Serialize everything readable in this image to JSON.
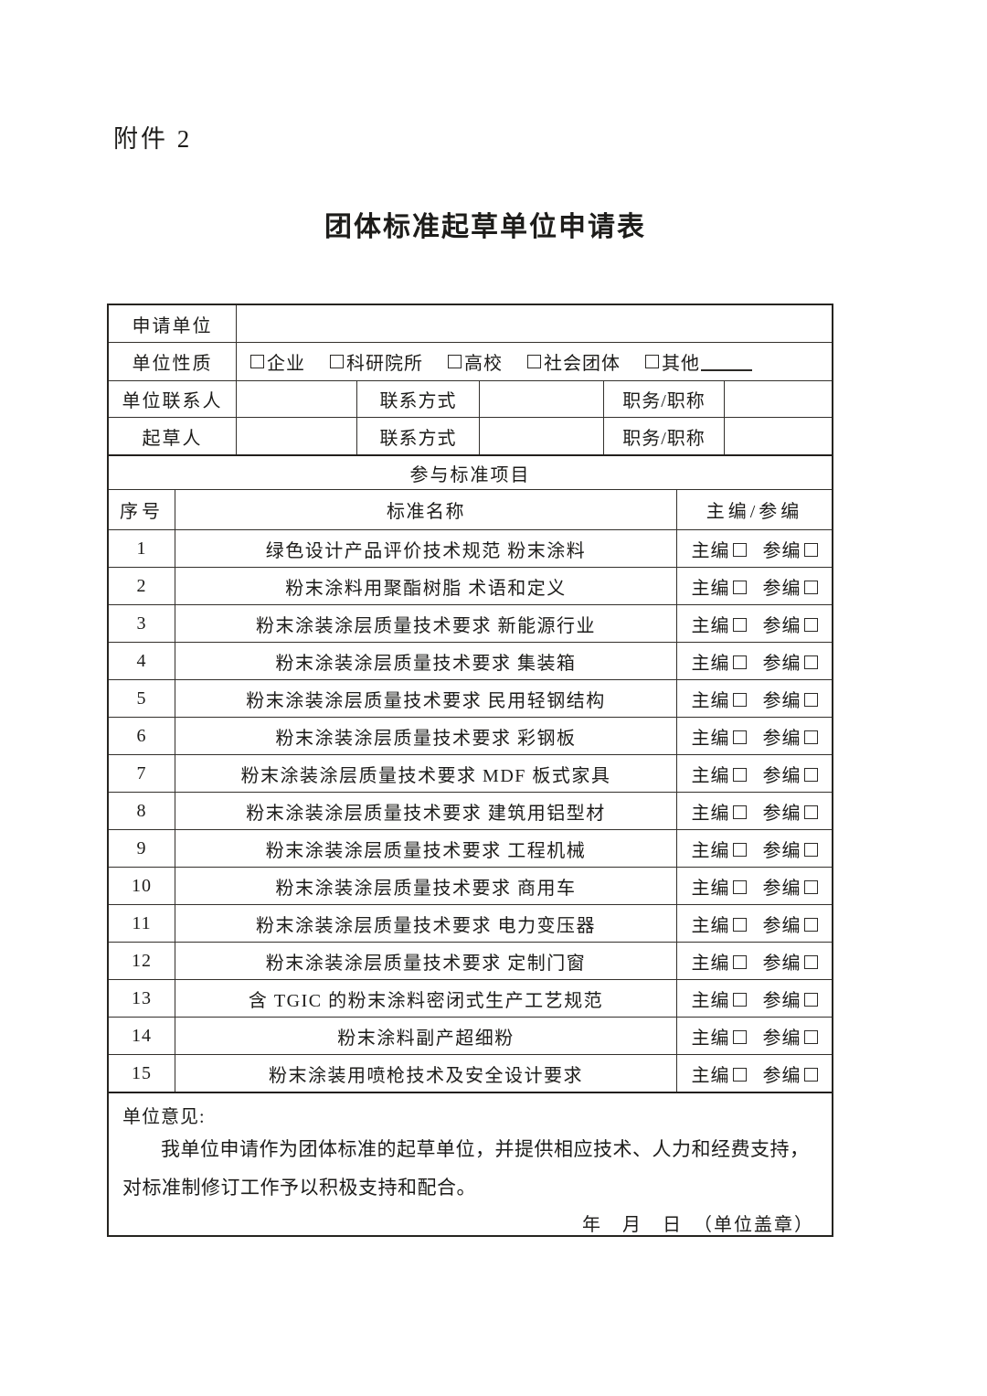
{
  "colors": {
    "background": "#ffffff",
    "text": "#1d1c1a",
    "line": "#33302c"
  },
  "icons": {
    "checkbox": "empty-square-checkbox"
  },
  "page": {
    "attachment_label": "附件 2",
    "title": "团体标准起草单位申请表"
  },
  "form": {
    "applicant_label": "申请单位",
    "applicant_value": "",
    "nature_label": "单位性质",
    "nature_options": [
      {
        "label": "企业"
      },
      {
        "label": "科研院所"
      },
      {
        "label": "高校"
      },
      {
        "label": "社会团体"
      },
      {
        "label": "其他",
        "blank": true
      }
    ],
    "contact_rows": [
      {
        "who_label": "单位联系人",
        "who_value": "",
        "contact_label": "联系方式",
        "contact_value": "",
        "title_label": "职务/职称",
        "title_value": ""
      },
      {
        "who_label": "起草人",
        "who_value": "",
        "contact_label": "联系方式",
        "contact_value": "",
        "title_label": "职务/职称",
        "title_value": ""
      }
    ],
    "section_title": "参与标准项目",
    "table_header": {
      "no": "序号",
      "name": "标准名称",
      "role": "主编/参编"
    },
    "role_labels": {
      "chief": "主编",
      "participant": "参编"
    },
    "standards": [
      {
        "no": "1",
        "name": "绿色设计产品评价技术规范 粉末涂料"
      },
      {
        "no": "2",
        "name": "粉末涂料用聚酯树脂 术语和定义"
      },
      {
        "no": "3",
        "name": "粉末涂装涂层质量技术要求 新能源行业"
      },
      {
        "no": "4",
        "name": "粉末涂装涂层质量技术要求 集装箱"
      },
      {
        "no": "5",
        "name": "粉末涂装涂层质量技术要求 民用轻钢结构"
      },
      {
        "no": "6",
        "name": "粉末涂装涂层质量技术要求 彩钢板"
      },
      {
        "no": "7",
        "name": "粉末涂装涂层质量技术要求 MDF 板式家具"
      },
      {
        "no": "8",
        "name": "粉末涂装涂层质量技术要求 建筑用铝型材"
      },
      {
        "no": "9",
        "name": "粉末涂装涂层质量技术要求 工程机械"
      },
      {
        "no": "10",
        "name": "粉末涂装涂层质量技术要求 商用车"
      },
      {
        "no": "11",
        "name": "粉末涂装涂层质量技术要求 电力变压器"
      },
      {
        "no": "12",
        "name": "粉末涂装涂层质量技术要求 定制门窗"
      },
      {
        "no": "13",
        "name": "含 TGIC 的粉末涂料密闭式生产工艺规范"
      },
      {
        "no": "14",
        "name": "粉末涂料副产超细粉"
      },
      {
        "no": "15",
        "name": "粉末涂装用喷枪技术及安全设计要求"
      }
    ],
    "opinion": {
      "label": "单位意见:",
      "body": "我单位申请作为团体标准的起草单位，并提供相应技术、人力和经费支持，对标准制修订工作予以积极支持和配合。",
      "date_line": "年　月　日　（单位盖章）"
    }
  }
}
